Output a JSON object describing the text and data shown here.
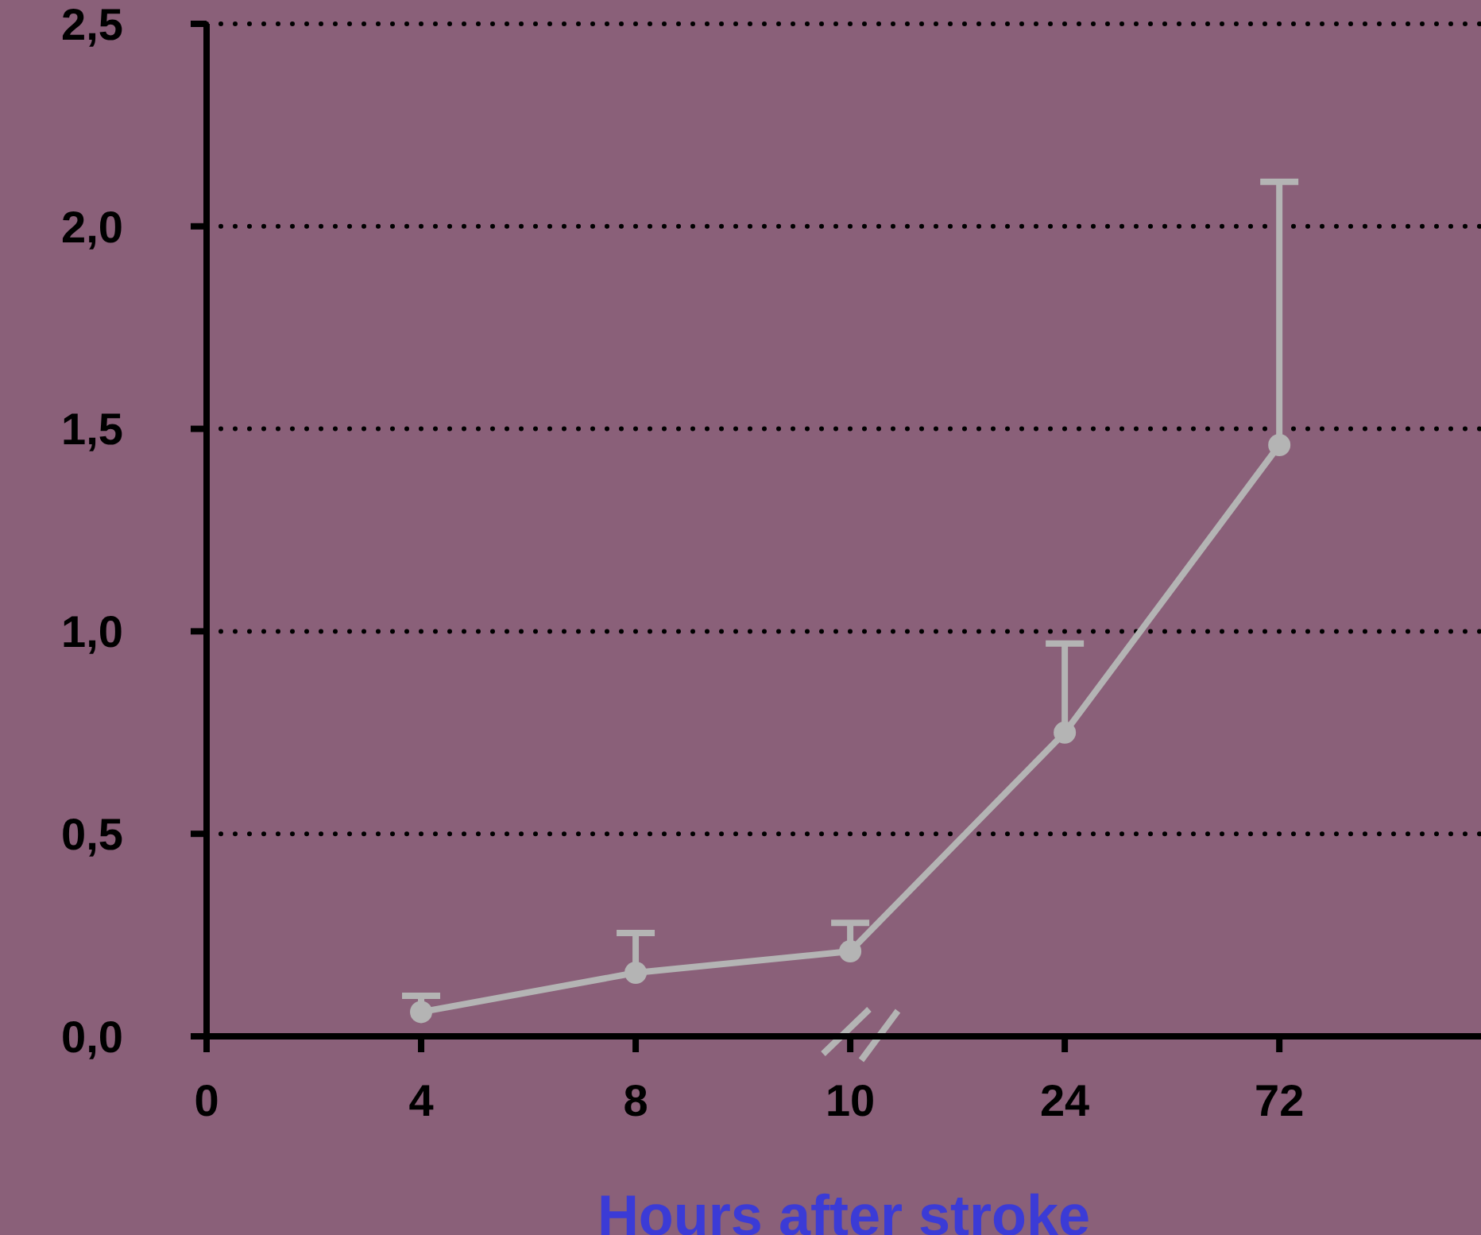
{
  "chart_data": {
    "type": "line",
    "xlabel": "Hours after stroke",
    "categories": [
      "0",
      "4",
      "8",
      "10",
      "24",
      "72"
    ],
    "series": [
      {
        "color": "#b4b4b4",
        "values": [
          null,
          0.06,
          0.157,
          0.21,
          0.75,
          1.46
        ],
        "errors": [
          null,
          [
            0.06,
            0.1
          ],
          [
            0.157,
            0.255
          ],
          [
            0.21,
            0.28
          ],
          [
            0.75,
            0.97
          ],
          [
            1.46,
            2.11
          ]
        ]
      }
    ],
    "ylim": [
      0,
      2.5
    ],
    "yticks": [
      {
        "value": 0,
        "label": "0,0"
      },
      {
        "value": 0.5,
        "label": "0,5"
      },
      {
        "value": 1,
        "label": "1,0"
      },
      {
        "value": 1.5,
        "label": "1,5"
      },
      {
        "value": 2,
        "label": "2,0"
      },
      {
        "value": 2.5,
        "label": "2,5"
      }
    ],
    "grid": "y",
    "marker": "circle",
    "line_style": "solid"
  }
}
